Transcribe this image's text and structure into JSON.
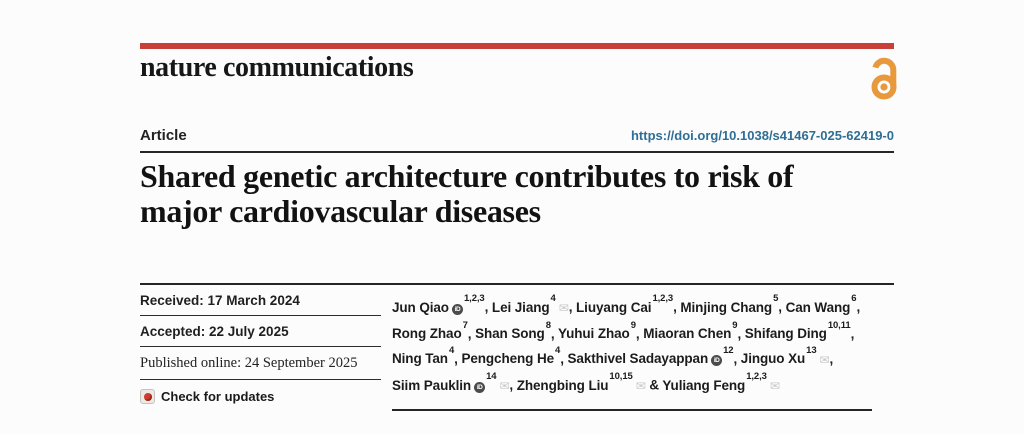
{
  "colors": {
    "accent_red": "#c84038",
    "open_access_orange": "#e8993b",
    "doi_blue": "#2d6f96",
    "rule_dark": "#262626"
  },
  "masthead": {
    "journal_name": "nature communications",
    "open_access_icon": "open-access-lock-icon"
  },
  "article_header": {
    "type_label": "Article",
    "doi_link": "https://doi.org/10.1038/s41467-025-62419-0",
    "title": "Shared genetic architecture contributes to risk of major cardiovascular diseases"
  },
  "history": {
    "rows": [
      {
        "text": "Received: 17 March 2024"
      },
      {
        "text": "Accepted: 22 July 2025"
      },
      {
        "text": "Published online: 24 September 2025"
      }
    ],
    "check_for_updates_label": "Check for updates",
    "crossmark_icon": "crossmark-check-icon"
  },
  "authors": {
    "orcid_icon_label": "iD",
    "mail_glyph": "✉",
    "last_separator": " & ",
    "list": [
      {
        "name": "Jun Qiao",
        "orcid": true,
        "sup": "1,2,3",
        "email": false
      },
      {
        "name": "Lei Jiang",
        "orcid": false,
        "sup": "4",
        "email": true
      },
      {
        "name": "Liuyang Cai",
        "orcid": false,
        "sup": "1,2,3",
        "email": false
      },
      {
        "name": "Minjing Chang",
        "orcid": false,
        "sup": "5",
        "email": false
      },
      {
        "name": "Can Wang",
        "orcid": false,
        "sup": "6",
        "email": false
      },
      {
        "name": "Rong Zhao",
        "orcid": false,
        "sup": "7",
        "email": false
      },
      {
        "name": "Shan Song",
        "orcid": false,
        "sup": "8",
        "email": false
      },
      {
        "name": "Yuhui Zhao",
        "orcid": false,
        "sup": "9",
        "email": false
      },
      {
        "name": "Miaoran Chen",
        "orcid": false,
        "sup": "9",
        "email": false
      },
      {
        "name": "Shifang Ding",
        "orcid": false,
        "sup": "10,11",
        "email": false
      },
      {
        "name": "Ning Tan",
        "orcid": false,
        "sup": "4",
        "email": false
      },
      {
        "name": "Pengcheng He",
        "orcid": false,
        "sup": "4",
        "email": false
      },
      {
        "name": "Sakthivel Sadayappan",
        "orcid": true,
        "sup": "12",
        "email": false
      },
      {
        "name": "Jinguo Xu",
        "orcid": false,
        "sup": "13",
        "email": true
      },
      {
        "name": "Siim Pauklin",
        "orcid": true,
        "sup": "14",
        "email": true
      },
      {
        "name": "Zhengbing Liu",
        "orcid": false,
        "sup": "10,15",
        "email": true
      },
      {
        "name": "Yuliang Feng",
        "orcid": false,
        "sup": "1,2,3",
        "email": true
      }
    ]
  }
}
